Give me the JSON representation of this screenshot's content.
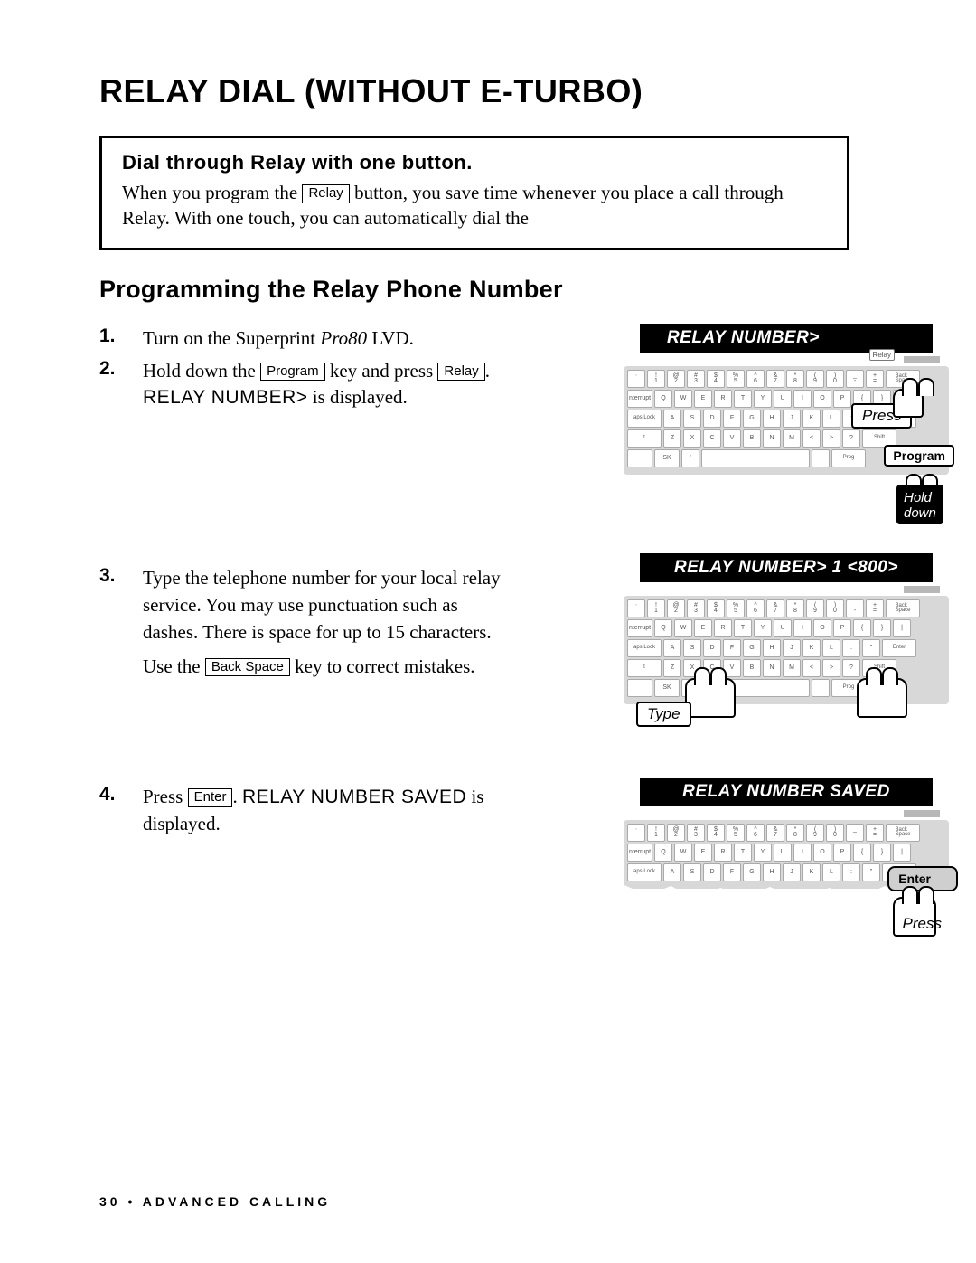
{
  "title": "RELAY DIAL (WITHOUT E-TURBO)",
  "callout": {
    "title": "Dial through Relay with one button.",
    "text_a": "When you program the ",
    "key": "Relay",
    "text_b": " button, you save time whenever you place a call through Relay. With one touch, you can automatically dial the"
  },
  "section": "Programming the Relay Phone Number",
  "steps": {
    "s1": {
      "num": "1.",
      "a": "Turn on the Superprint ",
      "model": "Pro80",
      "b": " LVD."
    },
    "s2": {
      "num": "2.",
      "a": "Hold down the ",
      "key1": "Program",
      "b": " key and press ",
      "key2": "Relay",
      "c": ". ",
      "disp": "RELAY NUMBER>",
      "d": " is displayed."
    },
    "s3": {
      "num": "3.",
      "p1": "Type the telephone number for your local relay service. You may use punctuation such as dashes. There is space for up to 15 characters.",
      "p2a": "Use the ",
      "key": "Back Space",
      "p2b": " key to correct mistakes."
    },
    "s4": {
      "num": "4.",
      "a": "Press ",
      "key": "Enter",
      "b": ". ",
      "disp": "RELAY NUMBER SAVED",
      "c": " is displayed."
    }
  },
  "figs": {
    "f1": {
      "screen": "RELAY NUMBER>",
      "press": "Press",
      "program": "Program",
      "hold": "Hold\ndown",
      "relay": "Relay"
    },
    "f2": {
      "screen": "RELAY NUMBER>  1 <800>",
      "type": "Type"
    },
    "f3": {
      "screen": "RELAY NUMBER SAVED",
      "enter": "Enter",
      "press": "Press"
    }
  },
  "keyboard": {
    "row1_top": [
      "~",
      "!",
      "@",
      "#",
      "$",
      "%",
      "^",
      "&",
      "*",
      "(",
      ")",
      "_",
      "+"
    ],
    "row1_bot": [
      "`",
      "1",
      "2",
      "3",
      "4",
      "5",
      "6",
      "7",
      "8",
      "9",
      "0",
      "-",
      "="
    ],
    "row2": [
      "Q",
      "W",
      "E",
      "R",
      "T",
      "Y",
      "U",
      "I",
      "O",
      "P",
      "{",
      "}",
      "|"
    ],
    "row3": [
      "A",
      "S",
      "D",
      "F",
      "G",
      "H",
      "J",
      "K",
      "L",
      ":",
      "\""
    ],
    "row4": [
      "Z",
      "X",
      "C",
      "V",
      "B",
      "N",
      "M",
      "<",
      ">",
      "?"
    ],
    "backspace": "Back\nSpace",
    "enter": "Enter",
    "shift": "Shift",
    "caps": "aps Lock",
    "interrupt": "nterrupt",
    "sk": "SK"
  },
  "footer": {
    "page": "30",
    "sep": " • ",
    "section": "ADVANCED CALLING"
  },
  "colors": {
    "kbd_bg": "#d8d8d8",
    "key_bg": "#ffffff"
  }
}
